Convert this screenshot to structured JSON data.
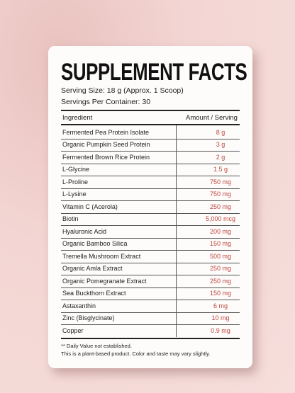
{
  "header": {
    "title": "SUPPLEMENT FACTS",
    "serving_size": "Serving Size: 18 g (Approx. 1 Scoop)",
    "servings": "Servings Per Container: 30"
  },
  "table": {
    "columns": [
      "Ingredient",
      "Amount / Serving"
    ],
    "rows": [
      [
        "Fermented Pea Protein Isolate",
        "8 g"
      ],
      [
        "Organic Pumpkin Seed Protein",
        "3 g"
      ],
      [
        "Fermented Brown Rice Protein",
        "2 g"
      ],
      [
        "L-Glycine",
        "1.5 g"
      ],
      [
        "L-Proline",
        "750 mg"
      ],
      [
        "L-Lysine",
        "750 mg"
      ],
      [
        "Vitamin C (Acerola)",
        "250 mg"
      ],
      [
        "Biotin",
        "5,000 mcg"
      ],
      [
        "Hyaluronic Acid",
        "200 mg"
      ],
      [
        "Organic Bamboo Silica",
        "150 mg"
      ],
      [
        "Tremella Mushroom Extract",
        "500 mg"
      ],
      [
        "Organic Amla Extract",
        "250 mg"
      ],
      [
        "Organic Pomegranate Extract",
        "250 mg"
      ],
      [
        "Sea Buckthorn Extract",
        "150 mg"
      ],
      [
        "Astaxanthin",
        "6 mg"
      ],
      [
        "Zinc (Bisglycinate)",
        "10 mg"
      ],
      [
        "Copper",
        "0.9 mg"
      ]
    ]
  },
  "footnotes": [
    "** Daily Value not established.",
    "This is a plant-based product. Color and taste may vary slightly."
  ]
}
